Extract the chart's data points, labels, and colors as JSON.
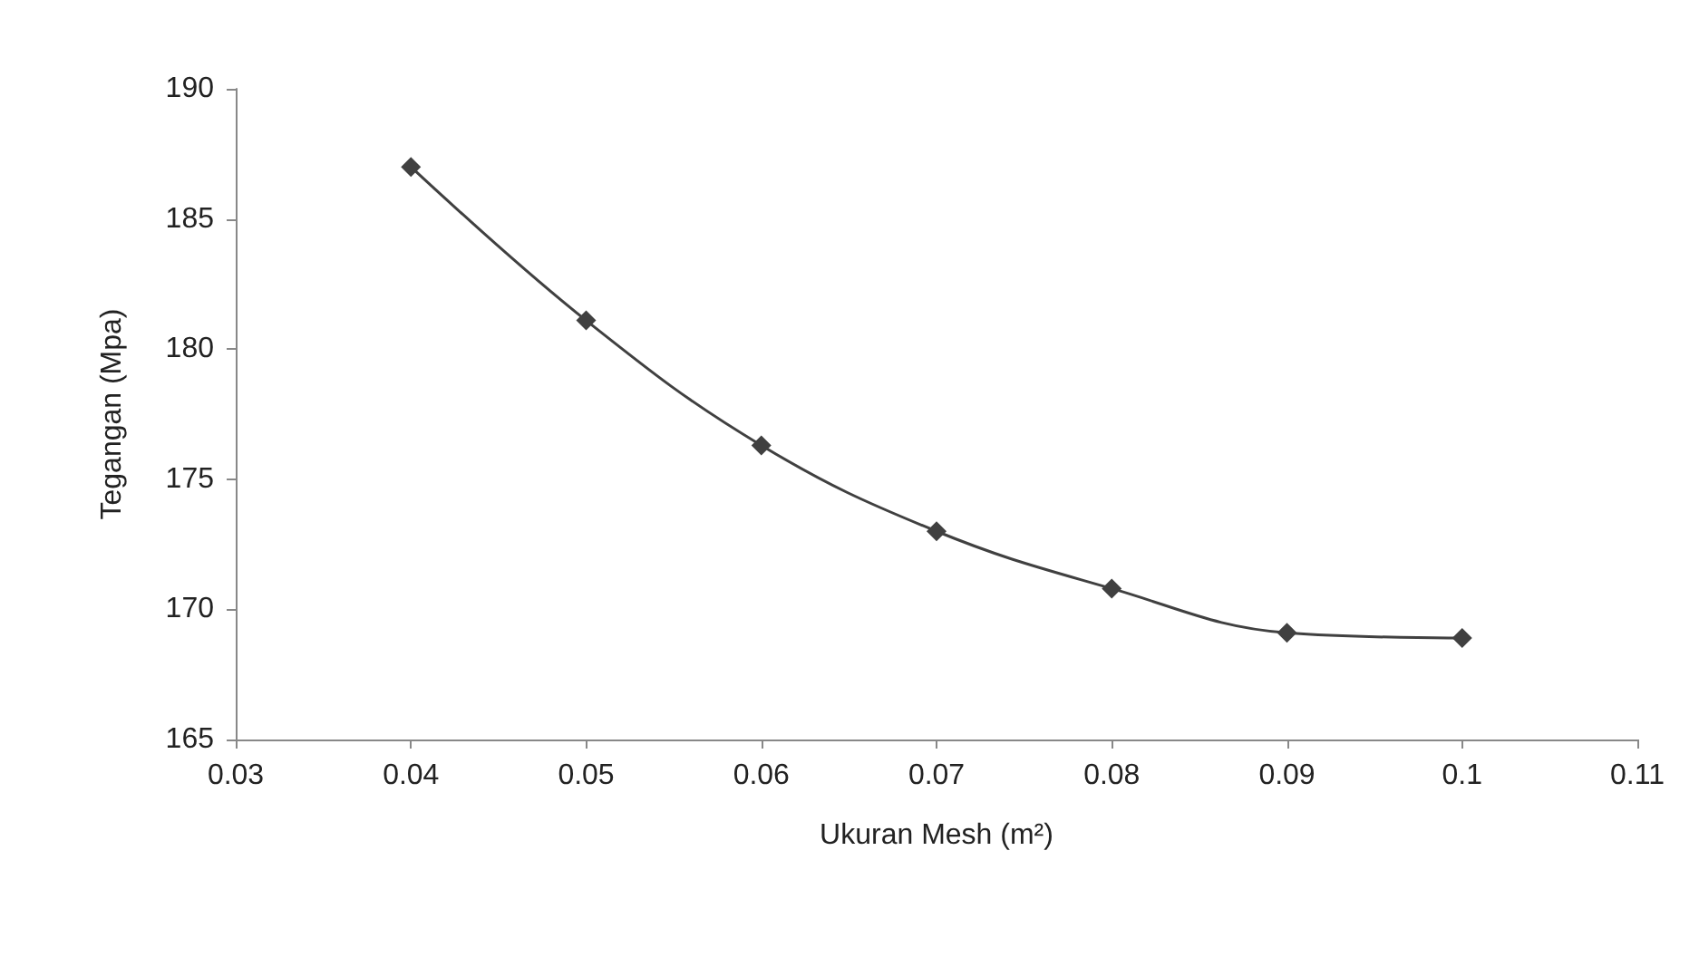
{
  "chart_data": {
    "type": "line",
    "xlabel": "Ukuran Mesh (m²)",
    "ylabel": "Tegangan (Mpa)",
    "x": [
      0.04,
      0.05,
      0.06,
      0.07,
      0.08,
      0.09,
      0.1
    ],
    "series": [
      {
        "color": "#404040",
        "values": [
          187.0,
          181.1,
          176.3,
          173.0,
          170.8,
          169.1,
          168.9
        ]
      }
    ],
    "xlim": [
      0.03,
      0.11
    ],
    "xticks": [
      0.03,
      0.04,
      0.05,
      0.06,
      0.07,
      0.08,
      0.09,
      0.1,
      0.11
    ],
    "ylim": [
      165,
      190
    ],
    "yticks": [
      165,
      170,
      175,
      180,
      185,
      190
    ],
    "grid": false,
    "marker": "diamond",
    "line_style": "solid"
  }
}
